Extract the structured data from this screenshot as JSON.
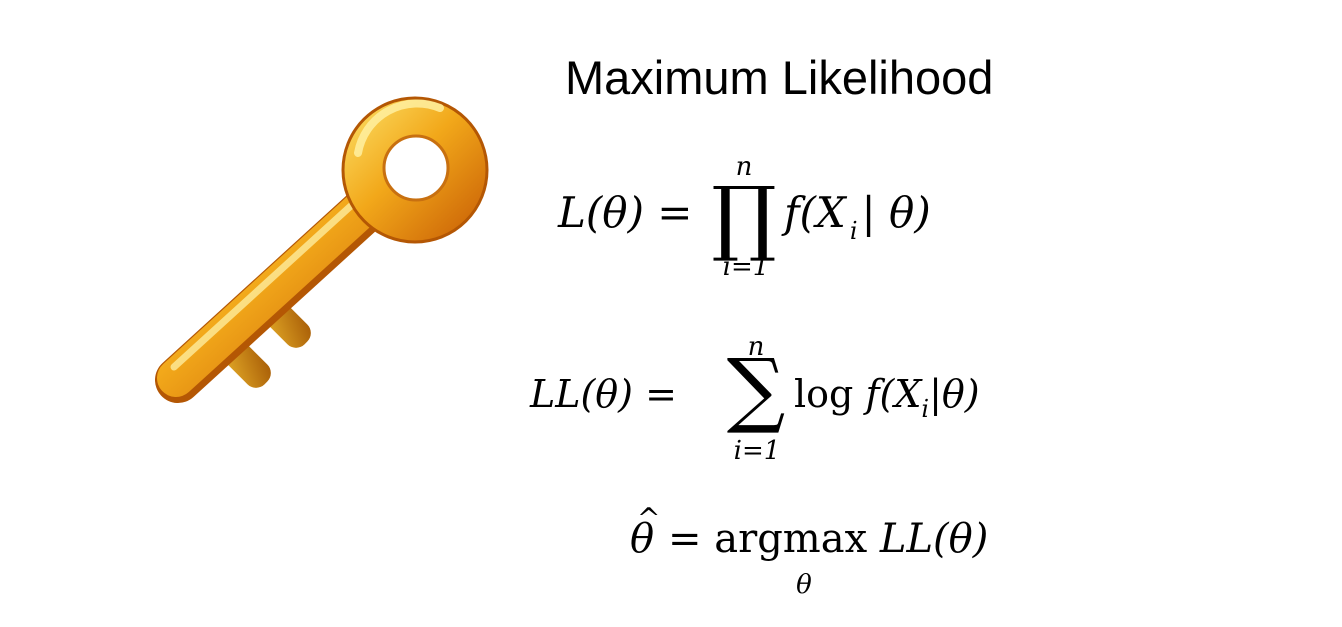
{
  "slide": {
    "title": "Maximum Likelihood",
    "key_icon": "key-icon",
    "colors": {
      "background": "#ffffff",
      "text": "#000000",
      "key_gold_light": "#fce36b",
      "key_gold": "#f2a81a",
      "key_orange_dark": "#c65a04"
    },
    "likelihood": {
      "lhs": "L(θ) =",
      "operator": "∏",
      "upper": "n",
      "lower": "i=1",
      "f_open": "f(X",
      "index": "i",
      "f_close": "| θ)"
    },
    "log_likelihood": {
      "lhs": "LL(θ) =",
      "operator": "∑",
      "upper": "n",
      "lower": "i=1",
      "log": "log",
      "f_open": "f(X",
      "index": "i",
      "f_close": "|θ)"
    },
    "estimator": {
      "symbol": "θ",
      "hat": "^",
      "equals": "=",
      "argmax": "argmax",
      "argmax_sub": "θ",
      "objective": "LL(θ)"
    }
  }
}
